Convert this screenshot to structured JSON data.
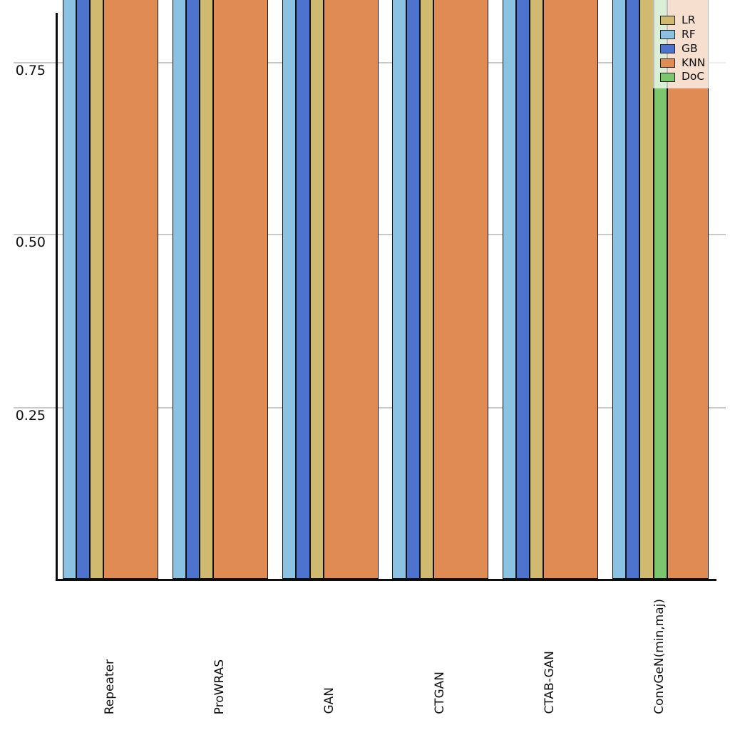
{
  "chart_data": {
    "type": "bar",
    "orientation": "vertical",
    "title": "",
    "xlabel": "",
    "ylabel": "",
    "categories": [
      "Repeater",
      "ProWRAS",
      "GAN",
      "CTGAN",
      "CTAB-GAN",
      "ConvGeN(min,maj)"
    ],
    "series": [
      {
        "name": "LR",
        "color": "#cfba70",
        "values": [
          null,
          null,
          null,
          null,
          null,
          null
        ],
        "clipped": true
      },
      {
        "name": "RF",
        "color": "#8cc2e1",
        "values": [
          null,
          null,
          null,
          null,
          null,
          null
        ],
        "clipped": true
      },
      {
        "name": "GB",
        "color": "#4d73ce",
        "values": [
          null,
          null,
          null,
          null,
          null,
          null
        ],
        "clipped": true
      },
      {
        "name": "KNN",
        "color": "#e08b53",
        "values": [
          null,
          null,
          null,
          null,
          null,
          null
        ],
        "clipped": true
      },
      {
        "name": "DoC",
        "color": "#7cc76d",
        "values": [
          null,
          null,
          null,
          null,
          null,
          null
        ],
        "clipped": true,
        "present_in": [
          "ConvGeN(min,maj)"
        ]
      }
    ],
    "yticks": [
      "0.25",
      "0.50",
      "0.75"
    ],
    "ylim_visible": [
      0,
      0.85
    ],
    "grid": "horizontal light-gray lines at each y tick, extending left past the y-axis",
    "legend_position": "top-right, semi-transparent white background, cropped at top",
    "note": "Screenshot is cropped at the top: every visible bar extends above the crop so exact bar values are unreadable (all > ~0.85). Bar order within a group is RF, GB, LR, (DoC), KNN. In the first five groups DoC is absent and the KNN bar is ~4 single-bar widths wide; in ConvGeN(min,maj) a DoC bar appears and KNN is ~3 widths wide."
  },
  "groups": [
    {
      "category": "Repeater",
      "bars": [
        {
          "series": "RF",
          "slots": 1
        },
        {
          "series": "GB",
          "slots": 1
        },
        {
          "series": "LR",
          "slots": 1
        },
        {
          "series": "KNN",
          "slots": 4
        }
      ]
    },
    {
      "category": "ProWRAS",
      "bars": [
        {
          "series": "RF",
          "slots": 1
        },
        {
          "series": "GB",
          "slots": 1
        },
        {
          "series": "LR",
          "slots": 1
        },
        {
          "series": "KNN",
          "slots": 4
        }
      ]
    },
    {
      "category": "GAN",
      "bars": [
        {
          "series": "RF",
          "slots": 1
        },
        {
          "series": "GB",
          "slots": 1
        },
        {
          "series": "LR",
          "slots": 1
        },
        {
          "series": "KNN",
          "slots": 4
        }
      ]
    },
    {
      "category": "CTGAN",
      "bars": [
        {
          "series": "RF",
          "slots": 1
        },
        {
          "series": "GB",
          "slots": 1
        },
        {
          "series": "LR",
          "slots": 1
        },
        {
          "series": "KNN",
          "slots": 4
        }
      ]
    },
    {
      "category": "CTAB-GAN",
      "bars": [
        {
          "series": "RF",
          "slots": 1
        },
        {
          "series": "GB",
          "slots": 1
        },
        {
          "series": "LR",
          "slots": 1
        },
        {
          "series": "KNN",
          "slots": 4
        }
      ]
    },
    {
      "category": "ConvGeN(min,maj)",
      "bars": [
        {
          "series": "RF",
          "slots": 1
        },
        {
          "series": "GB",
          "slots": 1
        },
        {
          "series": "LR",
          "slots": 1
        },
        {
          "series": "DoC",
          "slots": 1
        },
        {
          "series": "KNN",
          "slots": 3
        }
      ]
    }
  ],
  "y_axis": {
    "tick_labels": [
      "0.75",
      "0.50",
      "0.25"
    ]
  },
  "x_axis": {
    "labels": [
      "Repeater",
      "ProWRAS",
      "GAN",
      "CTGAN",
      "CTAB-GAN",
      "ConvGeN(min,maj)"
    ]
  },
  "legend": {
    "items": [
      {
        "label": "LR",
        "color": "#cfba70"
      },
      {
        "label": "RF",
        "color": "#8cc2e1"
      },
      {
        "label": "GB",
        "color": "#4d73ce"
      },
      {
        "label": "KNN",
        "color": "#e08b53"
      },
      {
        "label": "DoC",
        "color": "#7cc76d"
      }
    ]
  }
}
